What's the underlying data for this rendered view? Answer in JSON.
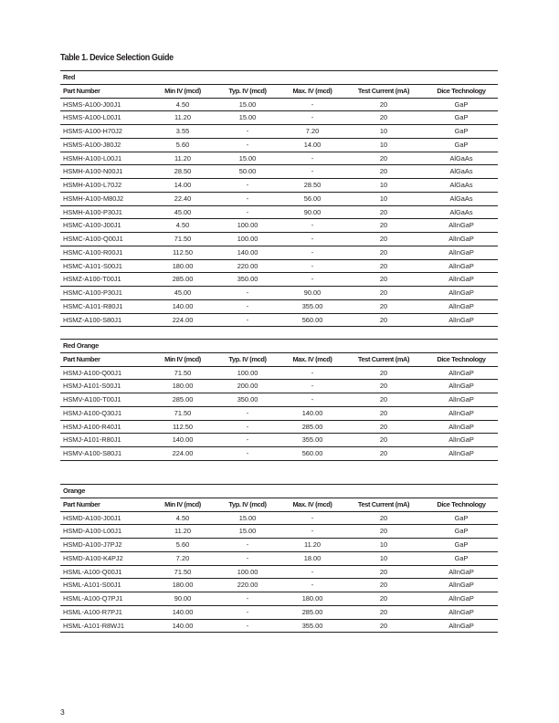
{
  "title": "Table 1. Device Selection Guide",
  "columns": [
    "Part Number",
    "Min IV (mcd)",
    "Typ. IV (mcd)",
    "Max. IV (mcd)",
    "Test Current (mA)",
    "Dice Technology"
  ],
  "sections": [
    {
      "label": "Red",
      "rows": [
        [
          "HSMS-A100-J00J1",
          "4.50",
          "15.00",
          "-",
          "20",
          "GaP"
        ],
        [
          "HSMS-A100-L00J1",
          "11.20",
          "15.00",
          "-",
          "20",
          "GaP"
        ],
        [
          "HSMS-A100-H70J2",
          "3.55",
          "-",
          "7.20",
          "10",
          "GaP"
        ],
        [
          "HSMS-A100-J80J2",
          "5.60",
          "-",
          "14.00",
          "10",
          "GaP"
        ],
        [
          "HSMH-A100-L00J1",
          "11.20",
          "15.00",
          "-",
          "20",
          "AlGaAs"
        ],
        [
          "HSMH-A100-N00J1",
          "28.50",
          "50.00",
          "-",
          "20",
          "AlGaAs"
        ],
        [
          "HSMH-A100-L70J2",
          "14.00",
          "-",
          "28.50",
          "10",
          "AlGaAs"
        ],
        [
          "HSMH-A100-M80J2",
          "22.40",
          "-",
          "56.00",
          "10",
          "AlGaAs"
        ],
        [
          "HSMH-A100-P30J1",
          "45.00",
          "-",
          "90.00",
          "20",
          "AlGaAs"
        ],
        [
          "HSMC-A100-J00J1",
          "4.50",
          "100.00",
          "-",
          "20",
          "AlInGaP"
        ],
        [
          "HSMC-A100-Q00J1",
          "71.50",
          "100.00",
          "-",
          "20",
          "AlInGaP"
        ],
        [
          "HSMC-A100-R00J1",
          "112.50",
          "140.00",
          "-",
          "20",
          "AlInGaP"
        ],
        [
          "HSMC-A101-S00J1",
          "180.00",
          "220.00",
          "-",
          "20",
          "AlInGaP"
        ],
        [
          "HSMZ-A100-T00J1",
          "285.00",
          "350.00",
          "-",
          "20",
          "AlInGaP"
        ],
        [
          "HSMC-A100-P30J1",
          "45.00",
          "-",
          "90.00",
          "20",
          "AlInGaP"
        ],
        [
          "HSMC-A101-R80J1",
          "140.00",
          "-",
          "355.00",
          "20",
          "AlInGaP"
        ],
        [
          "HSMZ-A100-S80J1",
          "224.00",
          "-",
          "560.00",
          "20",
          "AlInGaP"
        ]
      ]
    },
    {
      "label": "Red Orange",
      "rows": [
        [
          "HSMJ-A100-Q00J1",
          "71.50",
          "100.00",
          "-",
          "20",
          "AlInGaP"
        ],
        [
          "HSMJ-A101-S00J1",
          "180.00",
          "200.00",
          "-",
          "20",
          "AlInGaP"
        ],
        [
          "HSMV-A100-T00J1",
          "285.00",
          "350.00",
          "-",
          "20",
          "AlInGaP"
        ],
        [
          "HSMJ-A100-Q30J1",
          "71.50",
          "-",
          "140.00",
          "20",
          "AlInGaP"
        ],
        [
          "HSMJ-A100-R40J1",
          "112.50",
          "-",
          "285.00",
          "20",
          "AlInGaP"
        ],
        [
          "HSMJ-A101-R80J1",
          "140.00",
          "-",
          "355.00",
          "20",
          "AlInGaP"
        ],
        [
          "HSMV-A100-S80J1",
          "224.00",
          "-",
          "560.00",
          "20",
          "AlInGaP"
        ]
      ]
    },
    {
      "label": "Orange",
      "rows": [
        [
          "HSMD-A100-J00J1",
          "4.50",
          "15.00",
          "-",
          "20",
          "GaP"
        ],
        [
          "HSMD-A100-L00J1",
          "11.20",
          "15.00",
          "-",
          "20",
          "GaP"
        ],
        [
          "HSMD-A100-J7PJ2",
          "5.60",
          "-",
          "11.20",
          "10",
          "GaP"
        ],
        [
          "HSMD-A100-K4PJ2",
          "7.20",
          "-",
          "18.00",
          "10",
          "GaP"
        ],
        [
          "HSML-A100-Q00J1",
          "71.50",
          "100.00",
          "-",
          "20",
          "AlInGaP"
        ],
        [
          "HSML-A101-S00J1",
          "180.00",
          "220.00",
          "-",
          "20",
          "AlInGaP"
        ],
        [
          "HSML-A100-Q7PJ1",
          "90.00",
          "-",
          "180.00",
          "20",
          "AlInGaP"
        ],
        [
          "HSML-A100-R7PJ1",
          "140.00",
          "-",
          "285.00",
          "20",
          "AlInGaP"
        ],
        [
          "HSML-A101-R8WJ1",
          "140.00",
          "-",
          "355.00",
          "20",
          "AlInGaP"
        ]
      ]
    }
  ],
  "page_number": "3"
}
